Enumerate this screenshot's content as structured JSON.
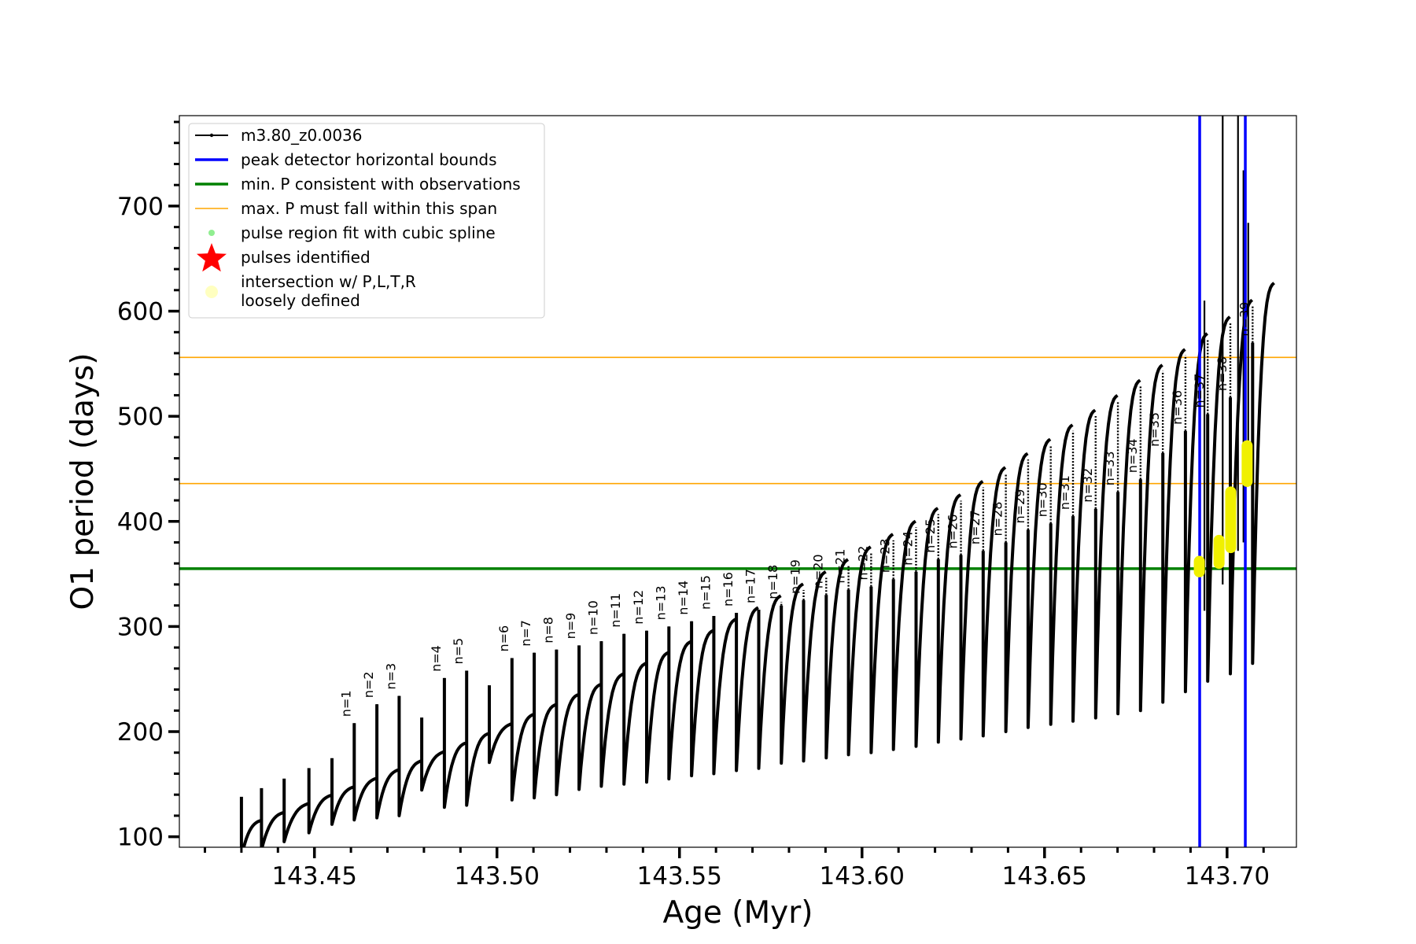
{
  "chart_data": {
    "type": "line",
    "title": "",
    "xlabel": "Age (Myr)",
    "ylabel": "O1 period (days)",
    "xlim": [
      143.413,
      143.719
    ],
    "ylim": [
      90,
      786
    ],
    "x_ticks": [
      143.45,
      143.5,
      143.55,
      143.6,
      143.65,
      143.7
    ],
    "x_tick_labels": [
      "143.45",
      "143.50",
      "143.55",
      "143.60",
      "143.65",
      "143.70"
    ],
    "y_ticks": [
      100,
      200,
      300,
      400,
      500,
      600,
      700
    ],
    "y_tick_labels": [
      "100",
      "200",
      "300",
      "400",
      "500",
      "600",
      "700"
    ],
    "grid": false,
    "legend_position": "top-left",
    "legend": [
      {
        "label": "m3.80_z0.0036",
        "kind": "line-marker",
        "color": "#000000"
      },
      {
        "label": "peak detector horizontal bounds",
        "kind": "line",
        "color": "#0000ff"
      },
      {
        "label": "min. P consistent with observations",
        "kind": "line",
        "color": "#008000"
      },
      {
        "label": "max. P must fall within this span",
        "kind": "thin-line",
        "color": "#ffa500"
      },
      {
        "label": "pulse region fit with cubic spline",
        "kind": "dot",
        "color": "#90ee90"
      },
      {
        "label": "pulses identified",
        "kind": "star",
        "color": "#ff0000"
      },
      {
        "label": "intersection w/ P,L,T,R",
        "label2": "loosely defined",
        "kind": "circle",
        "color": "#ffffc0"
      }
    ],
    "vertical_bounds": {
      "color": "#0000ff",
      "x": [
        143.6925,
        143.705
      ]
    },
    "min_period": {
      "color": "#008000",
      "y": 355
    },
    "max_period_span": {
      "color": "#ffa500",
      "y": [
        436,
        556
      ]
    },
    "pulses": [
      {
        "label": "n=1",
        "x": 143.4609,
        "peak": 208,
        "dip": 116
      },
      {
        "label": "n=2",
        "x": 143.4671,
        "peak": 226,
        "dip": 118
      },
      {
        "label": "n=3",
        "x": 143.4732,
        "peak": 234,
        "dip": 120
      },
      {
        "label": "n=4",
        "x": 143.4856,
        "peak": 251,
        "dip": 128
      },
      {
        "label": "n=5",
        "x": 143.4917,
        "peak": 258,
        "dip": 130
      },
      {
        "label": "n=6",
        "x": 143.5041,
        "peak": 270,
        "dip": 135
      },
      {
        "label": "n=7",
        "x": 143.5102,
        "peak": 275,
        "dip": 137
      },
      {
        "label": "n=8",
        "x": 143.5163,
        "peak": 278,
        "dip": 140
      },
      {
        "label": "n=9",
        "x": 143.5225,
        "peak": 282,
        "dip": 145
      },
      {
        "label": "n=10",
        "x": 143.5286,
        "peak": 286,
        "dip": 148
      },
      {
        "label": "n=11",
        "x": 143.5348,
        "peak": 293,
        "dip": 150
      },
      {
        "label": "n=12",
        "x": 143.541,
        "peak": 296,
        "dip": 152
      },
      {
        "label": "n=13",
        "x": 143.5471,
        "peak": 300,
        "dip": 155
      },
      {
        "label": "n=14",
        "x": 143.5533,
        "peak": 305,
        "dip": 158
      },
      {
        "label": "n=15",
        "x": 143.5594,
        "peak": 310,
        "dip": 160
      },
      {
        "label": "n=16",
        "x": 143.5656,
        "peak": 313,
        "dip": 163
      },
      {
        "label": "n=17",
        "x": 143.5717,
        "peak": 316,
        "dip": 165
      },
      {
        "label": "n=18",
        "x": 143.5779,
        "peak": 320,
        "dip": 170
      },
      {
        "label": "n=19",
        "x": 143.584,
        "peak": 325,
        "dip": 172
      },
      {
        "label": "n=20",
        "x": 143.5902,
        "peak": 330,
        "dip": 175
      },
      {
        "label": "n=21",
        "x": 143.5963,
        "peak": 335,
        "dip": 178
      },
      {
        "label": "n=22",
        "x": 143.6025,
        "peak": 338,
        "dip": 180
      },
      {
        "label": "n=23",
        "x": 143.6086,
        "peak": 345,
        "dip": 183
      },
      {
        "label": "n=24",
        "x": 143.6148,
        "peak": 352,
        "dip": 186
      },
      {
        "label": "n=25",
        "x": 143.6209,
        "peak": 364,
        "dip": 190
      },
      {
        "label": "n=26",
        "x": 143.6271,
        "peak": 368,
        "dip": 193
      },
      {
        "label": "n=27",
        "x": 143.6332,
        "peak": 372,
        "dip": 196
      },
      {
        "label": "n=28",
        "x": 143.6394,
        "peak": 380,
        "dip": 200
      },
      {
        "label": "n=29",
        "x": 143.6455,
        "peak": 392,
        "dip": 204
      },
      {
        "label": "n=30",
        "x": 143.6517,
        "peak": 398,
        "dip": 207
      },
      {
        "label": "n=31",
        "x": 143.6578,
        "peak": 405,
        "dip": 210
      },
      {
        "label": "n=32",
        "x": 143.664,
        "peak": 412,
        "dip": 213
      },
      {
        "label": "n=33",
        "x": 143.6701,
        "peak": 428,
        "dip": 217
      },
      {
        "label": "n=34",
        "x": 143.6763,
        "peak": 440,
        "dip": 220
      },
      {
        "label": "n=35",
        "x": 143.6824,
        "peak": 465,
        "dip": 228
      },
      {
        "label": "n=36",
        "x": 143.6886,
        "peak": 486,
        "dip": 238
      },
      {
        "label": "n=37",
        "x": 143.6947,
        "peak": 502,
        "dip": 248
      },
      {
        "label": "n=38",
        "x": 143.7009,
        "peak": 518,
        "dip": 255
      },
      {
        "label": "n=39",
        "x": 143.707,
        "peak": 570,
        "dip": 265
      }
    ],
    "intersection_segments": [
      {
        "x": 143.6924,
        "y0": 352,
        "y1": 362
      },
      {
        "x": 143.6978,
        "y0": 360,
        "y1": 382
      },
      {
        "x": 143.701,
        "y0": 375,
        "y1": 428
      },
      {
        "x": 143.7055,
        "y0": 438,
        "y1": 472
      }
    ]
  }
}
